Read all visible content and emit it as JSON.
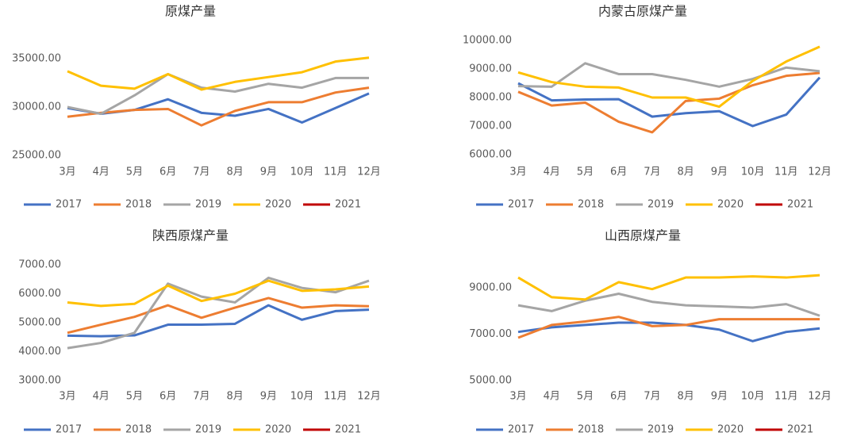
{
  "chart_data": [
    {
      "type": "line",
      "title": "原煤产量",
      "categories": [
        "3月",
        "4月",
        "5月",
        "6月",
        "7月",
        "8月",
        "9月",
        "10月",
        "11月",
        "12月"
      ],
      "ylim": [
        25000,
        37500
      ],
      "yticks": [
        {
          "value": 25000,
          "label": "25000.00"
        },
        {
          "value": 30000,
          "label": "30000.00"
        },
        {
          "value": 35000,
          "label": "35000.00"
        }
      ],
      "series": [
        {
          "name": "2017",
          "color": "#4472c4",
          "values": [
            29900,
            29300,
            29700,
            30800,
            29400,
            29100,
            29800,
            28400,
            29900,
            31400
          ]
        },
        {
          "name": "2018",
          "color": "#ed7d31",
          "values": [
            29000,
            29400,
            29700,
            29800,
            28100,
            29600,
            30500,
            30500,
            31500,
            32000
          ]
        },
        {
          "name": "2019",
          "color": "#a5a5a5",
          "values": [
            30000,
            29300,
            31200,
            33400,
            32000,
            31600,
            32400,
            32000,
            33000,
            33000
          ]
        },
        {
          "name": "2020",
          "color": "#ffc000",
          "values": [
            33700,
            32200,
            31900,
            33400,
            31800,
            32600,
            33100,
            33600,
            34700,
            35100
          ]
        },
        {
          "name": "2021",
          "color": "#c00000",
          "values": [
            null,
            null,
            null,
            null,
            null,
            null,
            null,
            null,
            null,
            null
          ]
        }
      ]
    },
    {
      "type": "line",
      "title": "内蒙古原煤产量",
      "categories": [
        "3月",
        "4月",
        "5月",
        "6月",
        "7月",
        "8月",
        "9月",
        "10月",
        "11月",
        "12月"
      ],
      "ylim": [
        6000,
        10000
      ],
      "yticks": [
        {
          "value": 6000,
          "label": "6000.00"
        },
        {
          "value": 7000,
          "label": "7000.00"
        },
        {
          "value": 8000,
          "label": "8000.00"
        },
        {
          "value": 9000,
          "label": "9000.00"
        },
        {
          "value": 10000,
          "label": "10000.00"
        }
      ],
      "series": [
        {
          "name": "2017",
          "color": "#4472c4",
          "values": [
            8500,
            7900,
            7930,
            7940,
            7330,
            7450,
            7520,
            7000,
            7400,
            8700
          ]
        },
        {
          "name": "2018",
          "color": "#ed7d31",
          "values": [
            8200,
            7720,
            7820,
            7150,
            6780,
            7880,
            7960,
            8430,
            8760,
            8860
          ]
        },
        {
          "name": "2019",
          "color": "#a5a5a5",
          "values": [
            8400,
            8380,
            9200,
            8820,
            8820,
            8620,
            8380,
            8650,
            9050,
            8920
          ]
        },
        {
          "name": "2020",
          "color": "#ffc000",
          "values": [
            8880,
            8540,
            8380,
            8350,
            8000,
            8000,
            7680,
            8580,
            9260,
            9780
          ]
        },
        {
          "name": "2021",
          "color": "#c00000",
          "values": [
            null,
            null,
            null,
            null,
            null,
            null,
            null,
            null,
            null,
            null
          ]
        }
      ]
    },
    {
      "type": "line",
      "title": "陕西原煤产量",
      "categories": [
        "3月",
        "4月",
        "5月",
        "6月",
        "7月",
        "8月",
        "9月",
        "10月",
        "11月",
        "12月"
      ],
      "ylim": [
        3000,
        7000
      ],
      "yticks": [
        {
          "value": 3000,
          "label": "3000.00"
        },
        {
          "value": 4000,
          "label": "4000.00"
        },
        {
          "value": 5000,
          "label": "5000.00"
        },
        {
          "value": 6000,
          "label": "6000.00"
        },
        {
          "value": 7000,
          "label": "7000.00"
        }
      ],
      "series": [
        {
          "name": "2017",
          "color": "#4472c4",
          "values": [
            4550,
            4530,
            4560,
            4930,
            4930,
            4960,
            5600,
            5100,
            5400,
            5450
          ]
        },
        {
          "name": "2018",
          "color": "#ed7d31",
          "values": [
            4650,
            4930,
            5200,
            5600,
            5170,
            5520,
            5850,
            5520,
            5600,
            5570
          ]
        },
        {
          "name": "2019",
          "color": "#a5a5a5",
          "values": [
            4120,
            4300,
            4650,
            6350,
            5900,
            5700,
            6550,
            6200,
            6050,
            6450
          ]
        },
        {
          "name": "2020",
          "color": "#ffc000",
          "values": [
            5700,
            5580,
            5650,
            6280,
            5750,
            6000,
            6450,
            6100,
            6150,
            6250
          ]
        },
        {
          "name": "2021",
          "color": "#c00000",
          "values": [
            null,
            null,
            null,
            null,
            null,
            null,
            null,
            null,
            null,
            null
          ]
        }
      ]
    },
    {
      "type": "line",
      "title": "山西原煤产量",
      "categories": [
        "3月",
        "4月",
        "5月",
        "6月",
        "7月",
        "8月",
        "9月",
        "10月",
        "11月",
        "12月"
      ],
      "ylim": [
        5000,
        10000
      ],
      "yticks": [
        {
          "value": 5000,
          "label": "5000.00"
        },
        {
          "value": 7000,
          "label": "7000.00"
        },
        {
          "value": 9000,
          "label": "9000.00"
        }
      ],
      "series": [
        {
          "name": "2017",
          "color": "#4472c4",
          "values": [
            7100,
            7300,
            7400,
            7500,
            7500,
            7400,
            7200,
            6700,
            7100,
            7250
          ]
        },
        {
          "name": "2018",
          "color": "#ed7d31",
          "values": [
            6850,
            7400,
            7550,
            7750,
            7350,
            7400,
            7650,
            7650,
            7650,
            7650
          ]
        },
        {
          "name": "2019",
          "color": "#a5a5a5",
          "values": [
            8250,
            8000,
            8450,
            8750,
            8400,
            8250,
            8200,
            8150,
            8300,
            7800
          ]
        },
        {
          "name": "2020",
          "color": "#ffc000",
          "values": [
            9450,
            8600,
            8500,
            9250,
            8950,
            9450,
            9450,
            9500,
            9450,
            9550
          ]
        },
        {
          "name": "2021",
          "color": "#c00000",
          "values": [
            null,
            null,
            null,
            null,
            null,
            null,
            null,
            null,
            null,
            null
          ]
        }
      ]
    }
  ]
}
